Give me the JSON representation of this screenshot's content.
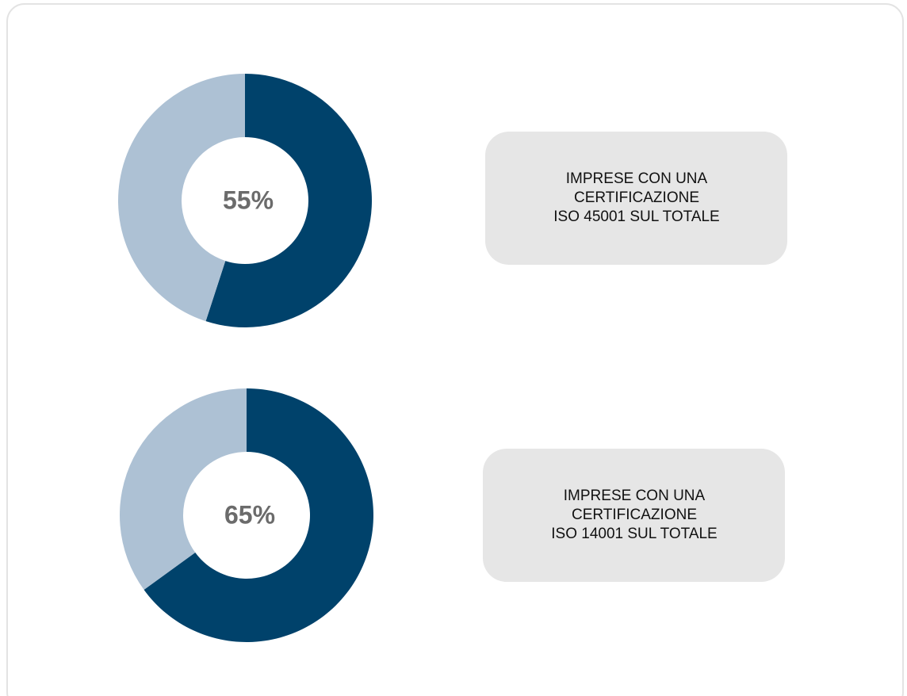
{
  "chart_data": [
    {
      "type": "donut",
      "values": [
        55,
        45
      ],
      "value_labels": [
        "55%",
        null
      ],
      "colors": [
        "#00426b",
        "#adc1d4"
      ],
      "annotation": [
        "IMPRESE CON UNA",
        "CERTIFICAZIONE",
        "ISO 45001 SUL TOTALE"
      ]
    },
    {
      "type": "donut",
      "values": [
        65,
        35
      ],
      "value_labels": [
        "65%",
        null
      ],
      "colors": [
        "#00426b",
        "#adc1d4"
      ],
      "annotation": [
        "IMPRESE CON UNA",
        "CERTIFICAZIONE",
        "ISO 14001 SUL TOTALE"
      ]
    }
  ]
}
